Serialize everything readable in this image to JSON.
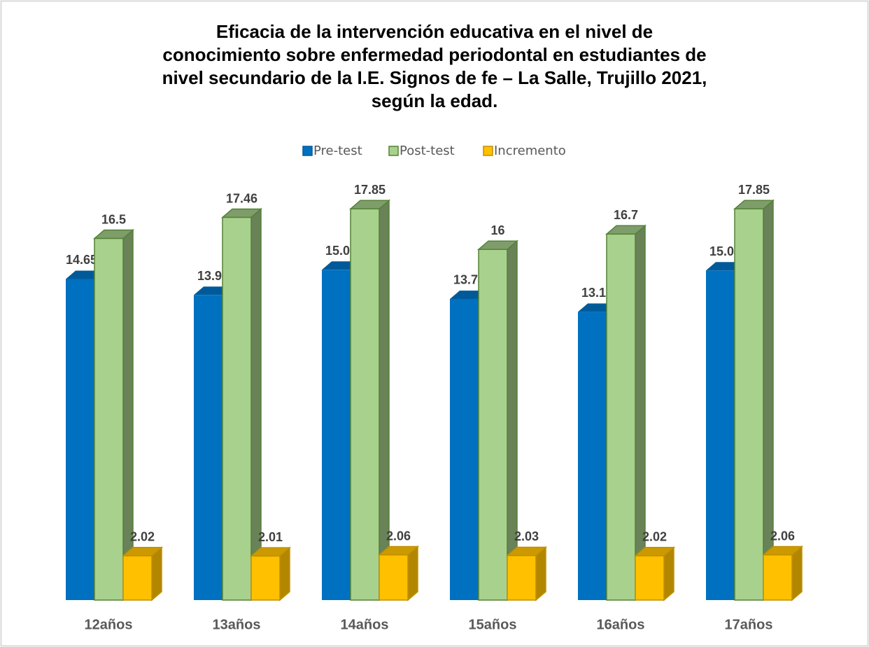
{
  "chart_data": {
    "type": "bar3d",
    "title": [
      "Eficacia de la intervención educativa en el nivel de",
      "conocimiento sobre enfermedad periodontal en estudiantes de",
      "nivel secundario de la I.E. Signos de fe – La Salle, Trujillo 2021,",
      "según la edad."
    ],
    "categories": [
      "12años",
      "13años",
      "14años",
      "15años",
      "16años",
      "17años"
    ],
    "series": [
      {
        "name": "Pre-test",
        "color": "#0070c0",
        "values": [
          14.65,
          13.92,
          15.07,
          13.74,
          13.15,
          15.04
        ],
        "value_labels": [
          "14.650",
          "13.92",
          "15.07",
          "13.74",
          "13.15",
          "15.04"
        ]
      },
      {
        "name": "Post-test",
        "color": "#a9d18e",
        "values": [
          16.5,
          17.46,
          17.85,
          16,
          16.7,
          17.85
        ]
      },
      {
        "name": "Incremento",
        "color": "#ffc000",
        "values": [
          2.02,
          2.01,
          2.06,
          2.03,
          2.02,
          2.06
        ]
      }
    ],
    "legend": "top"
  }
}
